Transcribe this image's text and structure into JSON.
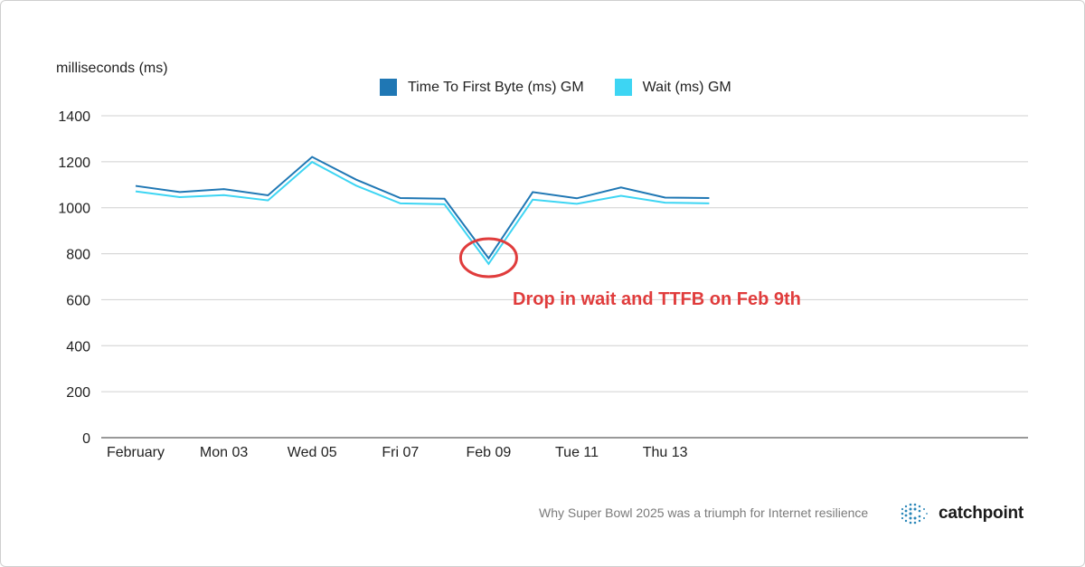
{
  "chart_data": {
    "type": "line",
    "ylabel": "milliseconds (ms)",
    "ylim": [
      0,
      1400
    ],
    "yticks": [
      0,
      200,
      400,
      600,
      800,
      1000,
      1200,
      1400
    ],
    "x_tick_labels": [
      {
        "index": 0,
        "label": "February"
      },
      {
        "index": 2,
        "label": "Mon 03"
      },
      {
        "index": 4,
        "label": "Wed 05"
      },
      {
        "index": 6,
        "label": "Fri 07"
      },
      {
        "index": 8,
        "label": "Feb 09"
      },
      {
        "index": 10,
        "label": "Tue 11"
      },
      {
        "index": 12,
        "label": "Thu 13"
      }
    ],
    "x": [
      "Feb 01",
      "Feb 02",
      "Feb 03",
      "Feb 04",
      "Feb 05",
      "Feb 06",
      "Feb 07",
      "Feb 08",
      "Feb 09",
      "Feb 10",
      "Feb 11",
      "Feb 12",
      "Feb 13",
      "Feb 14"
    ],
    "series": [
      {
        "name": "Time To First Byte (ms) GM",
        "color": "#1f77b4",
        "values": [
          1095,
          1068,
          1081,
          1054,
          1221,
          1122,
          1042,
          1039,
          780,
          1068,
          1041,
          1088,
          1044,
          1042
        ]
      },
      {
        "name": "Wait (ms) GM",
        "color": "#3dd5f3",
        "values": [
          1071,
          1046,
          1055,
          1032,
          1199,
          1096,
          1019,
          1015,
          756,
          1035,
          1017,
          1052,
          1022,
          1019
        ]
      }
    ],
    "grid": true,
    "legend_position": "top-center",
    "annotation": {
      "text": "Drop in wait and TTFB on Feb 9th",
      "target_index": 8,
      "color": "#e03c3c"
    }
  },
  "footer": {
    "caption": "Why Super Bowl 2025 was a triumph for Internet resilience",
    "brand": "catchpoint"
  }
}
